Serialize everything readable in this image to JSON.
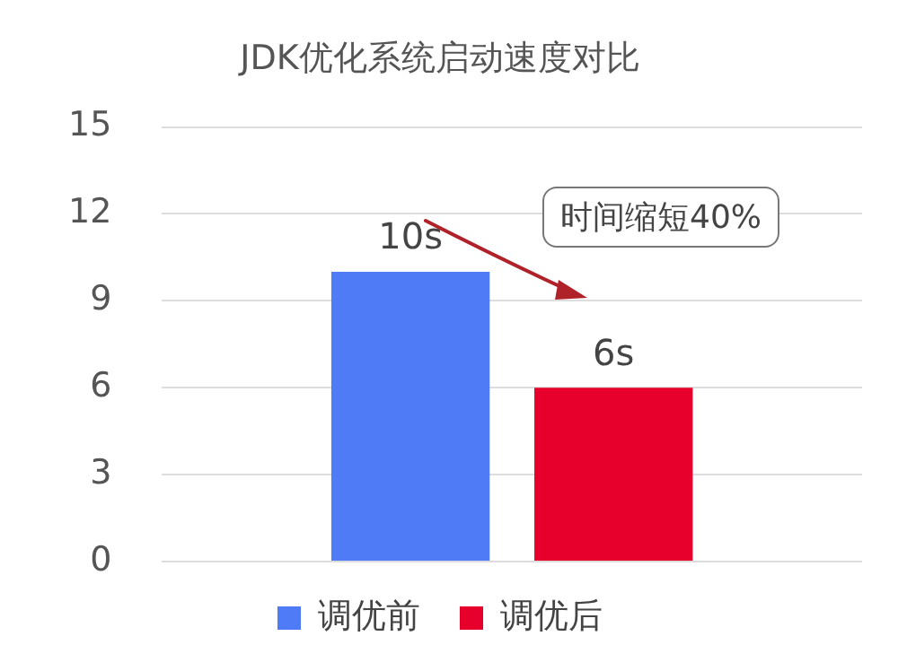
{
  "chart_data": {
    "type": "bar",
    "title": "JDK优化系统启动速度对比",
    "categories": [
      null
    ],
    "series": [
      {
        "name": "调优前",
        "color": "#4f7bf7",
        "values": [
          10
        ],
        "value_labels": [
          "10s"
        ]
      },
      {
        "name": "调优后",
        "color": "#e8002c",
        "values": [
          6
        ],
        "value_labels": [
          "6s"
        ]
      }
    ],
    "ylim": [
      0,
      15
    ],
    "yticks": [
      0,
      3,
      6,
      9,
      12,
      15
    ],
    "grid": "y",
    "legend": "bottom",
    "annotations": [
      "时间缩短40%"
    ]
  }
}
